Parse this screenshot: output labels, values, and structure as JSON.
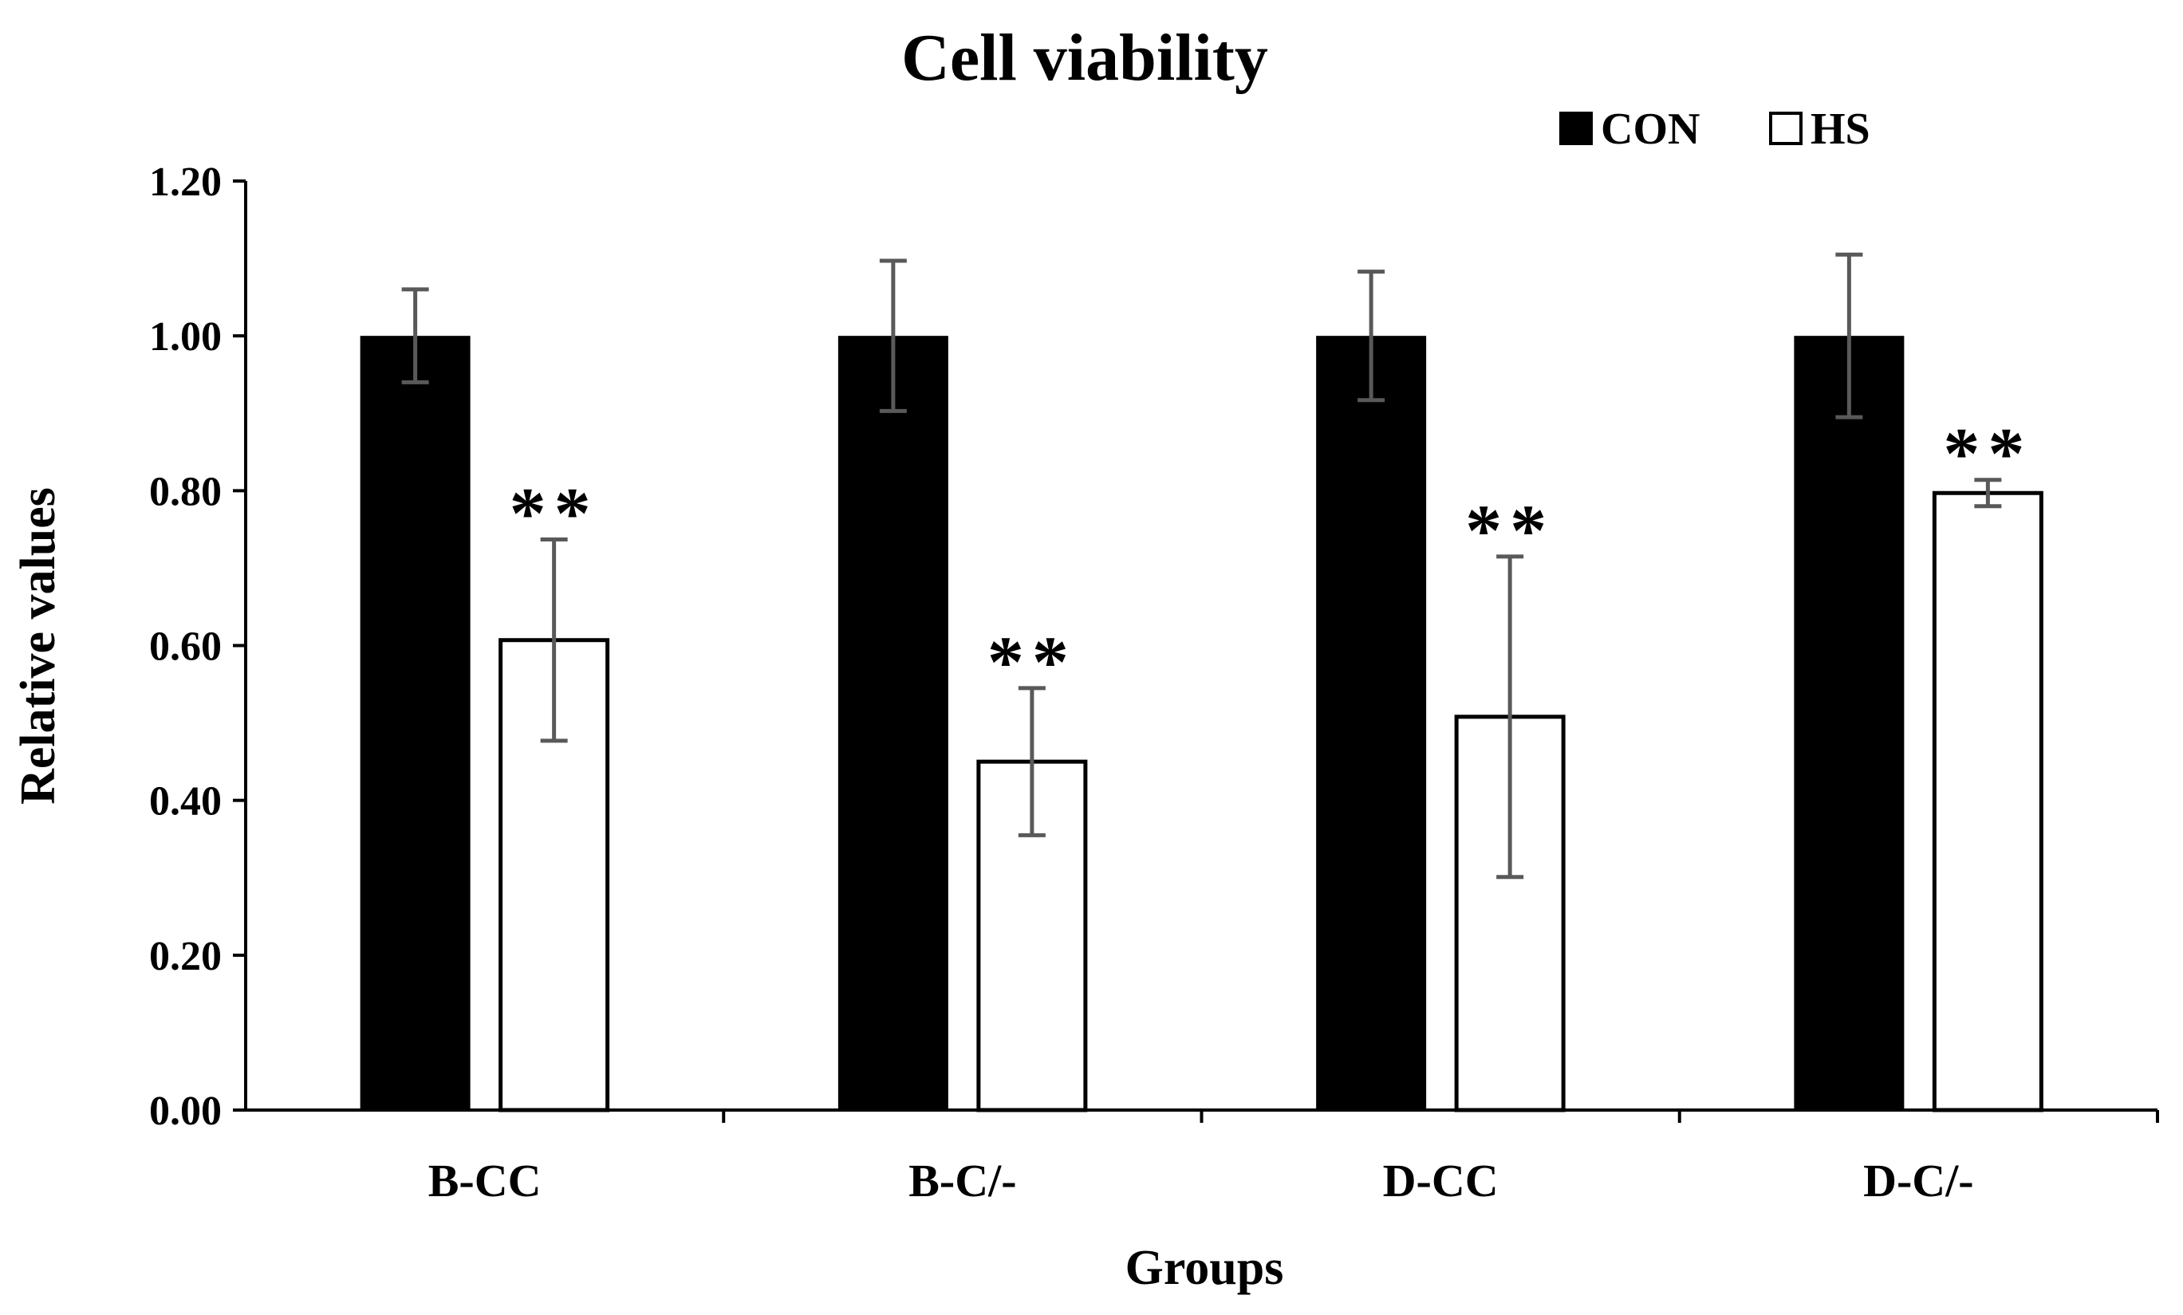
{
  "chart_data": {
    "type": "bar",
    "title": "Cell viability",
    "xlabel": "Groups",
    "ylabel": "Relative values",
    "ylim": [
      0,
      1.2
    ],
    "yticks": [
      "0.00",
      "0.20",
      "0.40",
      "0.60",
      "0.80",
      "1.00",
      "1.20"
    ],
    "ytick_values": [
      0,
      0.2,
      0.4,
      0.6,
      0.8,
      1.0,
      1.2
    ],
    "categories": [
      "B-CC",
      "B-C/-",
      "D-CC",
      "D-C/-"
    ],
    "legend_position": "top-right",
    "series": [
      {
        "name": "CON",
        "color": "#000000",
        "fill": "#000000",
        "values": [
          1.0,
          1.0,
          1.0,
          1.0
        ],
        "errors": [
          0.06,
          0.097,
          0.083,
          0.105
        ]
      },
      {
        "name": "HS",
        "color": "#000000",
        "fill": "#ffffff",
        "values": [
          0.607,
          0.45,
          0.508,
          0.797
        ],
        "errors": [
          0.13,
          0.095,
          0.207,
          0.017
        ]
      }
    ],
    "annotations": [
      {
        "category": "B-CC",
        "series": "HS",
        "text": "**"
      },
      {
        "category": "B-C/-",
        "series": "HS",
        "text": "**"
      },
      {
        "category": "D-CC",
        "series": "HS",
        "text": "**"
      },
      {
        "category": "D-C/-",
        "series": "HS",
        "text": "**"
      }
    ],
    "errorbar_color": "#595959"
  }
}
